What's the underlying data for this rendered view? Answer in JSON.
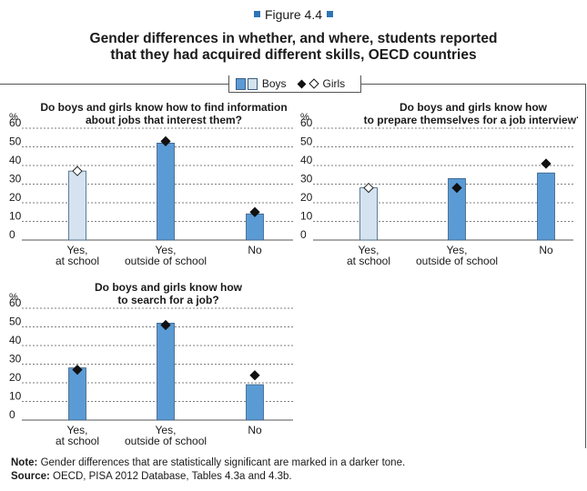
{
  "figure_label": "Figure 4.4",
  "title_line1": "Gender differences in whether, and where, students reported",
  "title_line2": "that they had acquired different skills, OECD countries",
  "legend": {
    "boys": "Boys",
    "girls": "Girls"
  },
  "colors": {
    "bar_dark": "#5b9bd5",
    "bar_light": "#d4e3ef",
    "bar_stroke": "#3b5e80",
    "marker": "#111111",
    "accent": "#2e74b5"
  },
  "note_label": "Note:",
  "note_text": " Gender differences that are statistically significant are marked in a darker tone.",
  "source_label": "Source:",
  "source_text": " OECD, PISA 2012 Database, Tables 4.3a and 4.3b.",
  "chart_data": [
    {
      "type": "bar",
      "title": [
        "Do boys and girls know how to find information",
        "about jobs that interest them?"
      ],
      "ylabel": "%",
      "ylim": [
        0,
        60
      ],
      "yticks": [
        0,
        10,
        20,
        30,
        40,
        50,
        60
      ],
      "categories": [
        [
          "Yes,",
          "at school"
        ],
        [
          "Yes,",
          "outside of school"
        ],
        [
          "No"
        ]
      ],
      "series": [
        {
          "name": "Boys",
          "values": [
            37,
            52,
            14
          ],
          "significant": [
            false,
            true,
            true
          ]
        },
        {
          "name": "Girls",
          "values": [
            37,
            53,
            15
          ],
          "significant": [
            false,
            true,
            true
          ]
        }
      ]
    },
    {
      "type": "bar",
      "title": [
        "Do boys and girls know how",
        "to prepare themselves for a job interview?"
      ],
      "ylabel": "%",
      "ylim": [
        0,
        60
      ],
      "yticks": [
        0,
        10,
        20,
        30,
        40,
        50,
        60
      ],
      "categories": [
        [
          "Yes,",
          "at school"
        ],
        [
          "Yes,",
          "outside of school"
        ],
        [
          "No"
        ]
      ],
      "series": [
        {
          "name": "Boys",
          "values": [
            28,
            33,
            36
          ],
          "significant": [
            false,
            true,
            true
          ]
        },
        {
          "name": "Girls",
          "values": [
            28,
            28,
            41
          ],
          "significant": [
            false,
            true,
            true
          ]
        }
      ]
    },
    {
      "type": "bar",
      "title": [
        "Do boys and girls know how",
        "to search for a job?"
      ],
      "ylabel": "%",
      "ylim": [
        0,
        60
      ],
      "yticks": [
        0,
        10,
        20,
        30,
        40,
        50,
        60
      ],
      "categories": [
        [
          "Yes,",
          "at school"
        ],
        [
          "Yes,",
          "outside of school"
        ],
        [
          "No"
        ]
      ],
      "series": [
        {
          "name": "Boys",
          "values": [
            28,
            52,
            19
          ],
          "significant": [
            true,
            true,
            true
          ]
        },
        {
          "name": "Girls",
          "values": [
            27,
            51,
            24
          ],
          "significant": [
            true,
            true,
            true
          ]
        }
      ]
    }
  ]
}
